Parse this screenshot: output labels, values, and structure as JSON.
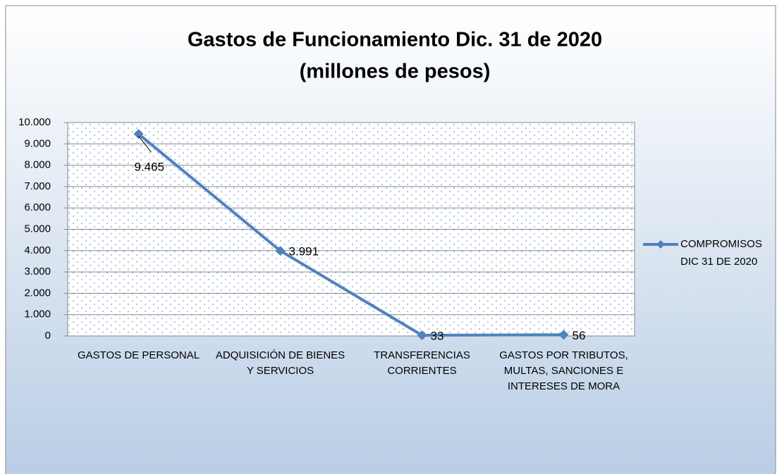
{
  "chart_data": {
    "type": "line",
    "title": "Gastos de Funcionamiento Dic. 31 de 2020",
    "subtitle": "(millones de pesos)",
    "categories": [
      "GASTOS DE PERSONAL",
      "ADQUISICIÓN DE BIENES Y SERVICIOS",
      "TRANSFERENCIAS CORRIENTES",
      "GASTOS POR TRIBUTOS, MULTAS, SANCIONES E INTERESES DE MORA"
    ],
    "series": [
      {
        "name": "COMPROMISOS DIC 31 DE 2020",
        "color": "#4f81bd",
        "values": [
          9465,
          3991,
          33,
          56
        ],
        "value_labels": [
          "9.465",
          "3.991",
          "33",
          "56"
        ]
      }
    ],
    "ylim": [
      0,
      10000
    ],
    "yticks": [
      0,
      {
        "value": 1000,
        "label": "1.000"
      },
      {
        "value": 2000,
        "label": "2.000"
      },
      {
        "value": 3000,
        "label": "3.000"
      },
      {
        "value": 4000,
        "label": "4.000"
      },
      {
        "value": 5000,
        "label": "5.000"
      },
      {
        "value": 6000,
        "label": "6.000"
      },
      {
        "value": 7000,
        "label": "7.000"
      },
      {
        "value": 8000,
        "label": "8.000"
      },
      {
        "value": 9000,
        "label": "9.000"
      },
      {
        "value": 10000,
        "label": "10.000"
      }
    ],
    "grid": true,
    "legend": "right"
  }
}
